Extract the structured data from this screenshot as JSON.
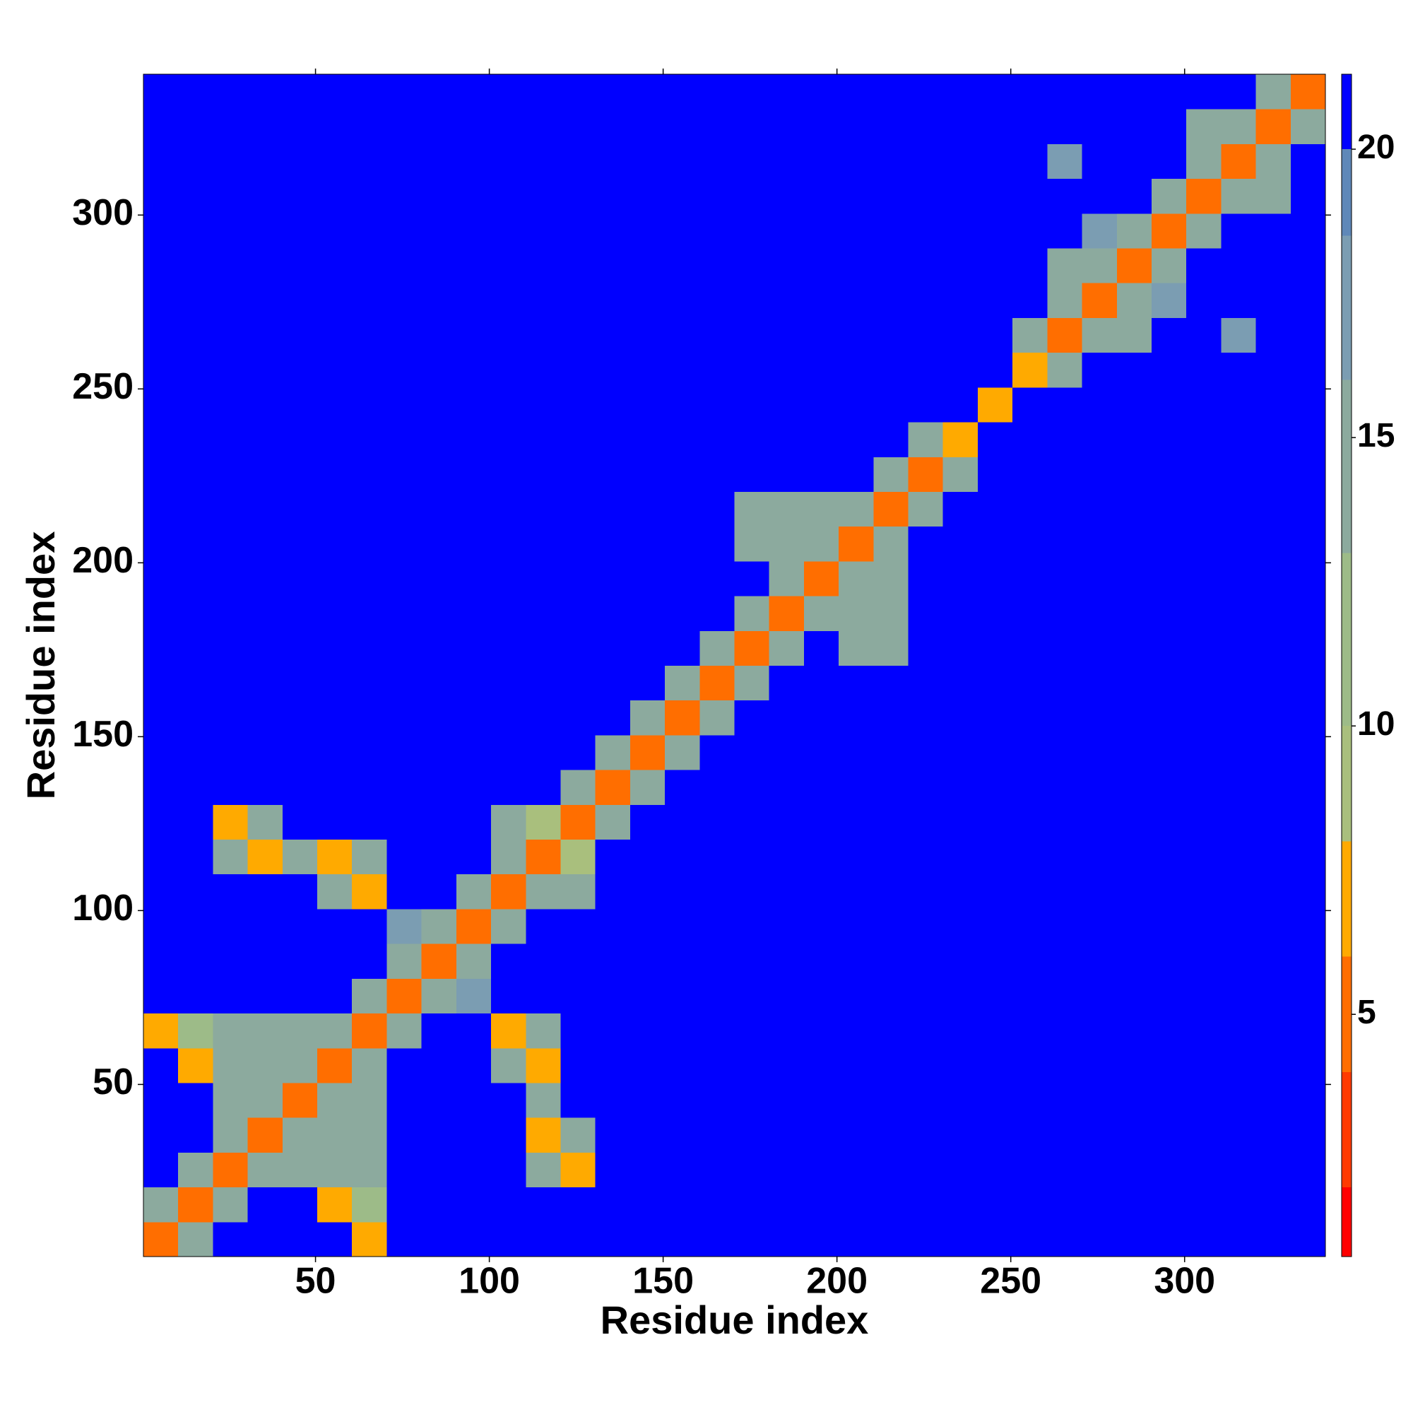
{
  "chart_data": {
    "type": "heatmap",
    "xlabel": "Residue index",
    "ylabel": "Residue index",
    "xlim": [
      0.5,
      340.5
    ],
    "ylim": [
      0.5,
      340.5
    ],
    "xticks": [
      50,
      100,
      150,
      200,
      250,
      300
    ],
    "yticks": [
      50,
      100,
      150,
      200,
      250,
      300
    ],
    "xbins": [
      0.5,
      10.5,
      20.5,
      30.5,
      40.5,
      50.5,
      60.5,
      70.5,
      80.5,
      90.5,
      100.5,
      110.5,
      120.5,
      130.5,
      140.5,
      150.5,
      160.5,
      170.5,
      180.5,
      190.5,
      200.5,
      210.5,
      220.5,
      230.5,
      240.5,
      250.5,
      260.5,
      270.5,
      280.5,
      290.5,
      300.5,
      310.5,
      320.5,
      330.5,
      340.5
    ],
    "ybins": [
      0.5,
      10.5,
      20.5,
      30.5,
      40.5,
      50.5,
      60.5,
      70.5,
      80.5,
      90.5,
      100.5,
      110.5,
      120.5,
      130.5,
      140.5,
      150.5,
      160.5,
      170.5,
      180.5,
      190.5,
      200.5,
      210.5,
      220.5,
      230.5,
      240.5,
      250.5,
      260.5,
      270.5,
      280.5,
      290.5,
      300.5,
      310.5,
      320.5,
      330.5,
      340.5
    ],
    "values": [
      [
        5,
        14,
        21,
        21,
        21,
        21,
        8,
        21,
        21,
        21,
        21,
        21,
        21,
        21,
        21,
        21,
        21,
        21,
        21,
        21,
        21,
        21,
        21,
        21,
        21,
        21,
        21,
        21,
        21,
        21,
        21,
        21,
        21,
        21
      ],
      [
        14,
        5,
        14,
        21,
        21,
        8,
        12,
        21,
        21,
        21,
        21,
        21,
        21,
        21,
        21,
        21,
        21,
        21,
        21,
        21,
        21,
        21,
        21,
        21,
        21,
        21,
        21,
        21,
        21,
        21,
        21,
        21,
        21,
        21
      ],
      [
        21,
        14,
        5,
        14,
        15,
        15,
        15,
        21,
        21,
        21,
        21,
        14,
        8,
        21,
        21,
        21,
        21,
        21,
        21,
        21,
        21,
        21,
        21,
        21,
        21,
        21,
        21,
        21,
        21,
        21,
        21,
        21,
        21,
        21
      ],
      [
        21,
        21,
        14,
        5,
        14,
        15,
        15,
        21,
        21,
        21,
        21,
        8,
        14,
        21,
        21,
        21,
        21,
        21,
        21,
        21,
        21,
        21,
        21,
        21,
        21,
        21,
        21,
        21,
        21,
        21,
        21,
        21,
        21,
        21
      ],
      [
        21,
        21,
        15,
        14,
        5,
        14,
        15,
        21,
        21,
        21,
        21,
        16,
        21,
        21,
        21,
        21,
        21,
        21,
        21,
        21,
        21,
        21,
        21,
        21,
        21,
        21,
        21,
        21,
        21,
        21,
        21,
        21,
        21,
        21
      ],
      [
        21,
        8,
        15,
        15,
        14,
        5,
        14,
        21,
        21,
        21,
        14,
        8,
        21,
        21,
        21,
        21,
        21,
        21,
        21,
        21,
        21,
        21,
        21,
        21,
        21,
        21,
        21,
        21,
        21,
        21,
        21,
        21,
        21,
        21
      ],
      [
        8,
        12,
        15,
        15,
        15,
        14,
        5,
        14,
        21,
        21,
        8,
        14,
        21,
        21,
        21,
        21,
        21,
        21,
        21,
        21,
        21,
        21,
        21,
        21,
        21,
        21,
        21,
        21,
        21,
        21,
        21,
        21,
        21,
        21
      ],
      [
        21,
        21,
        21,
        21,
        21,
        21,
        14,
        5,
        14,
        18,
        21,
        21,
        21,
        21,
        21,
        21,
        21,
        21,
        21,
        21,
        21,
        21,
        21,
        21,
        21,
        21,
        21,
        21,
        21,
        21,
        21,
        21,
        21,
        21
      ],
      [
        21,
        21,
        21,
        21,
        21,
        21,
        21,
        14,
        5,
        14,
        21,
        21,
        21,
        21,
        21,
        21,
        21,
        21,
        21,
        21,
        21,
        21,
        21,
        21,
        21,
        21,
        21,
        21,
        21,
        21,
        21,
        21,
        21,
        21
      ],
      [
        21,
        21,
        21,
        21,
        21,
        21,
        21,
        18,
        14,
        5,
        14,
        21,
        21,
        21,
        21,
        21,
        21,
        21,
        21,
        21,
        21,
        21,
        21,
        21,
        21,
        21,
        21,
        21,
        21,
        21,
        21,
        21,
        21,
        21
      ],
      [
        21,
        21,
        21,
        21,
        21,
        14,
        8,
        21,
        21,
        14,
        5,
        14,
        16,
        21,
        21,
        21,
        21,
        21,
        21,
        21,
        21,
        21,
        21,
        21,
        21,
        21,
        21,
        21,
        21,
        21,
        21,
        21,
        21,
        21
      ],
      [
        21,
        21,
        14,
        8,
        16,
        8,
        14,
        21,
        21,
        21,
        14,
        5,
        9,
        21,
        21,
        21,
        21,
        21,
        21,
        21,
        21,
        21,
        21,
        21,
        21,
        21,
        21,
        21,
        21,
        21,
        21,
        21,
        21,
        21
      ],
      [
        21,
        21,
        8,
        14,
        21,
        21,
        21,
        21,
        21,
        21,
        16,
        9,
        5,
        14,
        21,
        21,
        21,
        21,
        21,
        21,
        21,
        21,
        21,
        21,
        21,
        21,
        21,
        21,
        21,
        21,
        21,
        21,
        21,
        21
      ],
      [
        21,
        21,
        21,
        21,
        21,
        21,
        21,
        21,
        21,
        21,
        21,
        21,
        14,
        5,
        14,
        21,
        21,
        21,
        21,
        21,
        21,
        21,
        21,
        21,
        21,
        21,
        21,
        21,
        21,
        21,
        21,
        21,
        21,
        21
      ],
      [
        21,
        21,
        21,
        21,
        21,
        21,
        21,
        21,
        21,
        21,
        21,
        21,
        21,
        14,
        5,
        14,
        21,
        21,
        21,
        21,
        21,
        21,
        21,
        21,
        21,
        21,
        21,
        21,
        21,
        21,
        21,
        21,
        21,
        21
      ],
      [
        21,
        21,
        21,
        21,
        21,
        21,
        21,
        21,
        21,
        21,
        21,
        21,
        21,
        21,
        14,
        5,
        14,
        21,
        21,
        21,
        21,
        21,
        21,
        21,
        21,
        21,
        21,
        21,
        21,
        21,
        21,
        21,
        21,
        21
      ],
      [
        21,
        21,
        21,
        21,
        21,
        21,
        21,
        21,
        21,
        21,
        21,
        21,
        21,
        21,
        21,
        14,
        5,
        14,
        21,
        21,
        21,
        21,
        21,
        21,
        21,
        21,
        21,
        21,
        21,
        21,
        21,
        21,
        21,
        21
      ],
      [
        21,
        21,
        21,
        21,
        21,
        21,
        21,
        21,
        21,
        21,
        21,
        21,
        21,
        21,
        21,
        21,
        14,
        5,
        14,
        21,
        16,
        16,
        21,
        21,
        21,
        21,
        21,
        21,
        21,
        21,
        21,
        21,
        21,
        21
      ],
      [
        21,
        21,
        21,
        21,
        21,
        21,
        21,
        21,
        21,
        21,
        21,
        21,
        21,
        21,
        21,
        21,
        21,
        14,
        5,
        14,
        16,
        16,
        21,
        21,
        21,
        21,
        21,
        21,
        21,
        21,
        21,
        21,
        21,
        21
      ],
      [
        21,
        21,
        21,
        21,
        21,
        21,
        21,
        21,
        21,
        21,
        21,
        21,
        21,
        21,
        21,
        21,
        21,
        21,
        14,
        5,
        14,
        15,
        21,
        21,
        21,
        21,
        21,
        21,
        21,
        21,
        21,
        21,
        21,
        21
      ],
      [
        21,
        21,
        21,
        21,
        21,
        21,
        21,
        21,
        21,
        21,
        21,
        21,
        21,
        21,
        21,
        21,
        21,
        16,
        16,
        14,
        5,
        14,
        21,
        21,
        21,
        21,
        21,
        21,
        21,
        21,
        21,
        21,
        21,
        21
      ],
      [
        21,
        21,
        21,
        21,
        21,
        21,
        21,
        21,
        21,
        21,
        21,
        21,
        21,
        21,
        21,
        21,
        21,
        16,
        16,
        15,
        14,
        5,
        14,
        21,
        21,
        21,
        21,
        21,
        21,
        21,
        21,
        21,
        21,
        21
      ],
      [
        21,
        21,
        21,
        21,
        21,
        21,
        21,
        21,
        21,
        21,
        21,
        21,
        21,
        21,
        21,
        21,
        21,
        21,
        21,
        21,
        21,
        14,
        5,
        14,
        21,
        21,
        21,
        21,
        21,
        21,
        21,
        21,
        21,
        21
      ],
      [
        21,
        21,
        21,
        21,
        21,
        21,
        21,
        21,
        21,
        21,
        21,
        21,
        21,
        21,
        21,
        21,
        21,
        21,
        21,
        21,
        21,
        21,
        14,
        7,
        21,
        21,
        21,
        21,
        21,
        21,
        21,
        21,
        21,
        21
      ],
      [
        21,
        21,
        21,
        21,
        21,
        21,
        21,
        21,
        21,
        21,
        21,
        21,
        21,
        21,
        21,
        21,
        21,
        21,
        21,
        21,
        21,
        21,
        21,
        21,
        7,
        21,
        21,
        21,
        21,
        21,
        21,
        21,
        21,
        21
      ],
      [
        21,
        21,
        21,
        21,
        21,
        21,
        21,
        21,
        21,
        21,
        21,
        21,
        21,
        21,
        21,
        21,
        21,
        21,
        21,
        21,
        21,
        21,
        21,
        21,
        21,
        7,
        14,
        21,
        21,
        21,
        21,
        21,
        21,
        21
      ],
      [
        21,
        21,
        21,
        21,
        21,
        21,
        21,
        21,
        21,
        21,
        21,
        21,
        21,
        21,
        21,
        21,
        21,
        21,
        21,
        21,
        21,
        21,
        21,
        21,
        21,
        14,
        5,
        14,
        16,
        21,
        21,
        18,
        21,
        21
      ],
      [
        21,
        21,
        21,
        21,
        21,
        21,
        21,
        21,
        21,
        21,
        21,
        21,
        21,
        21,
        21,
        21,
        21,
        21,
        21,
        21,
        21,
        21,
        21,
        21,
        21,
        21,
        14,
        5,
        14,
        17,
        21,
        21,
        21,
        21
      ],
      [
        21,
        21,
        21,
        21,
        21,
        21,
        21,
        21,
        21,
        21,
        21,
        21,
        21,
        21,
        21,
        21,
        21,
        21,
        21,
        21,
        21,
        21,
        21,
        21,
        21,
        21,
        16,
        14,
        5,
        14,
        21,
        21,
        21,
        21
      ],
      [
        21,
        21,
        21,
        21,
        21,
        21,
        21,
        21,
        21,
        21,
        21,
        21,
        21,
        21,
        21,
        21,
        21,
        21,
        21,
        21,
        21,
        21,
        21,
        21,
        21,
        21,
        21,
        17,
        14,
        5,
        14,
        21,
        21,
        21
      ],
      [
        21,
        21,
        21,
        21,
        21,
        21,
        21,
        21,
        21,
        21,
        21,
        21,
        21,
        21,
        21,
        21,
        21,
        21,
        21,
        21,
        21,
        21,
        21,
        21,
        21,
        21,
        21,
        21,
        21,
        14,
        5,
        14,
        16,
        21
      ],
      [
        21,
        21,
        21,
        21,
        21,
        21,
        21,
        21,
        21,
        21,
        21,
        21,
        21,
        21,
        21,
        21,
        21,
        21,
        21,
        21,
        21,
        21,
        21,
        21,
        21,
        21,
        18,
        21,
        21,
        21,
        14,
        5,
        14,
        21
      ],
      [
        21,
        21,
        21,
        21,
        21,
        21,
        21,
        21,
        21,
        21,
        21,
        21,
        21,
        21,
        21,
        21,
        21,
        21,
        21,
        21,
        21,
        21,
        21,
        21,
        21,
        21,
        21,
        21,
        21,
        21,
        16,
        14,
        5,
        14
      ],
      [
        21,
        21,
        21,
        21,
        21,
        21,
        21,
        21,
        21,
        21,
        21,
        21,
        21,
        21,
        21,
        21,
        21,
        21,
        21,
        21,
        21,
        21,
        21,
        21,
        21,
        21,
        21,
        21,
        21,
        21,
        21,
        21,
        14,
        5
      ]
    ],
    "clim": [
      0.8,
      21.3
    ],
    "colorbar_ticks": [
      5,
      10,
      15,
      20
    ],
    "colorscale": [
      [
        2,
        "#ff0000"
      ],
      [
        4,
        "#ff3a00"
      ],
      [
        6,
        "#ff6e00"
      ],
      [
        8,
        "#ffaa00"
      ],
      [
        10,
        "#a9bf7d"
      ],
      [
        13,
        "#9dbb88"
      ],
      [
        16,
        "#8caa9e"
      ],
      [
        18.5,
        "#7b9db2"
      ],
      [
        20,
        "#5f88b8"
      ]
    ],
    "over_color": "#0000ff"
  }
}
